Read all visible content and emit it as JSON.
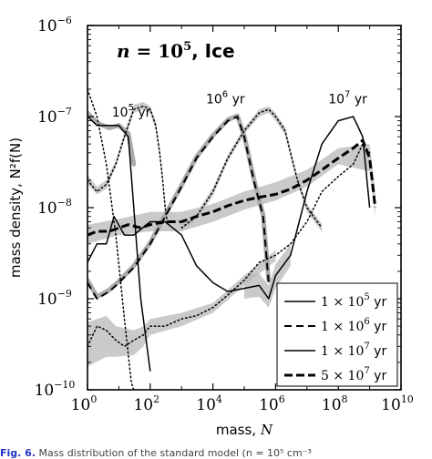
{
  "chart_data": {
    "type": "line",
    "title": "n = 10^5, Ice",
    "title_n": "n",
    "title_eq": " = 10",
    "title_exp": "5",
    "title_tail": ", Ice",
    "xlabel": "mass,",
    "xlabel_var": "N",
    "ylabel": "mass density, N²f(N)",
    "xscale": "log",
    "yscale": "log",
    "xlim": [
      1,
      10000000000.0
    ],
    "ylim": [
      1e-10,
      1e-06
    ],
    "x_ticks": [
      {
        "base": "10",
        "exp": "0",
        "value": 1
      },
      {
        "base": "10",
        "exp": "2",
        "value": 100
      },
      {
        "base": "10",
        "exp": "4",
        "value": 10000
      },
      {
        "base": "10",
        "exp": "6",
        "value": 1000000
      },
      {
        "base": "10",
        "exp": "8",
        "value": 100000000
      },
      {
        "base": "10",
        "exp": "10",
        "value": 10000000000
      }
    ],
    "y_ticks": [
      {
        "base": "10",
        "exp": "−10",
        "value": 1e-10
      },
      {
        "base": "10",
        "exp": "−9",
        "value": 1e-09
      },
      {
        "base": "10",
        "exp": "−8",
        "value": 1e-08
      },
      {
        "base": "10",
        "exp": "−7",
        "value": 1e-07
      },
      {
        "base": "10",
        "exp": "−6",
        "value": 1e-06
      }
    ],
    "annotations": [
      {
        "base": "10",
        "exp": "5",
        "unit": " yr",
        "x": 25,
        "y": 1e-07
      },
      {
        "base": "10",
        "exp": "6",
        "unit": " yr",
        "x": 25000,
        "y": 1.4e-07
      },
      {
        "base": "10",
        "exp": "7",
        "unit": " yr",
        "x": 200000000,
        "y": 1.4e-07
      }
    ],
    "legend_position": "lower right",
    "series": [
      {
        "name": "1 × 10^5 yr",
        "legend_text": "1 × 10",
        "legend_exp": "5",
        "legend_unit": " yr",
        "style": "solid",
        "width": 1.5,
        "x": [
          1,
          2,
          5,
          10,
          20,
          30,
          50,
          100
        ],
        "y": [
          1e-07,
          8e-08,
          8e-08,
          8e-08,
          6e-08,
          1e-08,
          1e-09,
          1.6e-10
        ],
        "shadow_x": [
          1,
          2,
          5,
          10,
          20,
          30
        ],
        "shadow_y": [
          1.1e-07,
          8.5e-08,
          7.5e-08,
          8e-08,
          6.5e-08,
          3e-08
        ]
      },
      {
        "name": "1 × 10^6 yr",
        "legend_text": "1 × 10",
        "legend_exp": "6",
        "legend_unit": " yr",
        "style": "dashed",
        "width": 2,
        "x": [
          1,
          2,
          5,
          10,
          30,
          100,
          300,
          1000,
          3000,
          10000,
          30000,
          60000,
          100000,
          200000,
          400000,
          600000
        ],
        "y": [
          1.5e-09,
          1e-09,
          1.2e-09,
          1.5e-09,
          2.2e-09,
          4e-09,
          8e-09,
          1.7e-08,
          3.5e-08,
          6e-08,
          9e-08,
          1e-07,
          6e-08,
          2e-08,
          8e-09,
          1.5e-09
        ],
        "shadow_x": [
          1,
          2,
          5,
          10,
          30,
          100,
          300,
          1000,
          3000,
          10000,
          30000,
          60000,
          100000,
          200000,
          400000,
          600000
        ],
        "shadow_y": [
          1.6e-09,
          1.05e-09,
          1.25e-09,
          1.55e-09,
          2.3e-09,
          4.1e-09,
          8.3e-09,
          1.75e-08,
          3.6e-08,
          6.2e-08,
          9.2e-08,
          1.02e-07,
          6.2e-08,
          2.1e-08,
          8.3e-09,
          1.6e-09
        ]
      },
      {
        "name": "1 × 10^7 yr",
        "legend_text": "1 × 10",
        "legend_exp": "7",
        "legend_unit": " yr",
        "style": "solid",
        "width": 1.5,
        "x": [
          1,
          2,
          4,
          7,
          15,
          30,
          100,
          300,
          1000,
          3000,
          10000,
          30000,
          100000,
          300000,
          600000,
          1000000,
          3000000,
          10000000,
          30000000,
          100000000,
          300000000,
          600000000,
          1000000000
        ],
        "y": [
          2.5e-09,
          4e-09,
          4e-09,
          8e-09,
          5e-09,
          5e-09,
          7e-09,
          7e-09,
          5e-09,
          2.3e-09,
          1.5e-09,
          1.2e-09,
          1.3e-09,
          1.4e-09,
          1e-09,
          1.8e-09,
          3e-09,
          1.5e-08,
          5e-08,
          9e-08,
          1e-07,
          6e-08,
          1e-08
        ],
        "band_x": [
          100000,
          300000,
          600000,
          1000000,
          3000000
        ],
        "band_lo": [
          1e-09,
          1.05e-09,
          8e-10,
          1.3e-09,
          2.3e-09
        ],
        "band_hi": [
          1.8e-09,
          1.9e-09,
          1.4e-09,
          2.4e-09,
          4e-09
        ]
      },
      {
        "name": "5 × 10^7 yr",
        "legend_text": "5 × 10",
        "legend_exp": "7",
        "legend_unit": " yr",
        "style": "thickdash",
        "width": 3,
        "x": [
          1,
          2,
          5,
          10,
          20,
          50,
          100,
          300,
          1000,
          3000,
          10000,
          30000,
          100000,
          300000,
          1000000,
          3000000,
          10000000,
          30000000,
          100000000,
          300000000,
          600000000,
          1000000000,
          1500000000
        ],
        "y": [
          5e-09,
          5.5e-09,
          5.5e-09,
          6e-09,
          6.5e-09,
          6e-09,
          6.5e-09,
          7e-09,
          7e-09,
          8e-09,
          9e-09,
          1.05e-08,
          1.2e-08,
          1.3e-08,
          1.4e-08,
          1.6e-08,
          2e-08,
          2.6e-08,
          3.5e-08,
          4.5e-08,
          5.5e-08,
          3.5e-08,
          1e-08
        ],
        "band_x": [
          1,
          10,
          100,
          1000,
          10000,
          100000,
          1000000,
          10000000,
          100000000,
          1000000000,
          1500000000
        ],
        "band_lo": [
          4e-09,
          5e-09,
          5.5e-09,
          5.5e-09,
          7e-09,
          9.5e-09,
          1.2e-08,
          1.7e-08,
          3e-08,
          2.5e-08,
          8e-09
        ],
        "band_hi": [
          6.5e-09,
          7.5e-09,
          9e-09,
          9e-09,
          1.1e-08,
          1.5e-08,
          1.9e-08,
          2.6e-08,
          4.5e-08,
          5e-08,
          1.5e-08
        ]
      },
      {
        "name": "dotted 10^5 yr",
        "style": "dotted",
        "width": 1.5,
        "x": [
          1,
          2,
          4,
          8,
          15,
          25,
          30
        ],
        "y": [
          2e-07,
          1e-07,
          3e-08,
          5e-09,
          6e-10,
          1.2e-10,
          1e-10
        ]
      },
      {
        "name": "dotted early",
        "style": "dotted",
        "width": 1.5,
        "x": [
          1,
          2,
          4,
          8,
          15,
          30,
          60,
          100,
          150,
          200,
          250,
          300,
          350
        ],
        "y": [
          2e-08,
          1.5e-08,
          1.8e-08,
          3e-08,
          6e-08,
          1.2e-07,
          1.3e-07,
          1.2e-07,
          8e-08,
          4e-08,
          2e-08,
          1e-08,
          7e-09
        ],
        "band_x": [
          1,
          2,
          4,
          8,
          15,
          30,
          60,
          100,
          150,
          200,
          250,
          300,
          350
        ],
        "band_lo": [
          1.8e-08,
          1.4e-08,
          1.6e-08,
          2.8e-08,
          5.5e-08,
          1.1e-07,
          1.2e-07,
          1.1e-07,
          7e-08,
          3.5e-08,
          1.8e-08,
          9e-09,
          6e-09
        ],
        "band_hi": [
          2.3e-08,
          1.7e-08,
          2e-08,
          3.3e-08,
          6.7e-08,
          1.35e-07,
          1.45e-07,
          1.3e-07,
          9e-08,
          4.5e-08,
          2.2e-08,
          1.15e-08,
          8e-09
        ]
      },
      {
        "name": "dotted middle",
        "style": "dotted",
        "width": 1.5,
        "x": [
          1000,
          3000,
          10000,
          30000,
          100000,
          300000,
          600000,
          1000000,
          2000000,
          3000000,
          5000000,
          10000000,
          30000000
        ],
        "y": [
          6e-09,
          8e-09,
          1.5e-08,
          3.5e-08,
          7e-08,
          1.1e-07,
          1.2e-07,
          1e-07,
          7e-08,
          4e-08,
          2e-08,
          1e-08,
          6e-09
        ],
        "band_x": [
          1000,
          3000,
          10000,
          30000,
          100000,
          300000,
          600000,
          1000000,
          2000000,
          3000000,
          5000000,
          10000000,
          30000000
        ],
        "band_lo": [
          5.5e-09,
          7.3e-09,
          1.35e-08,
          3.2e-08,
          6.4e-08,
          1e-07,
          1.1e-07,
          9e-08,
          6.3e-08,
          3.6e-08,
          1.8e-08,
          9e-09,
          5.4e-09
        ],
        "band_hi": [
          6.6e-09,
          8.8e-09,
          1.65e-08,
          3.8e-08,
          7.6e-08,
          1.2e-07,
          1.3e-07,
          1.1e-07,
          7.7e-08,
          4.4e-08,
          2.2e-08,
          1.1e-08,
          6.6e-09
        ]
      },
      {
        "name": "dotted late",
        "style": "dotted",
        "width": 1.5,
        "x": [
          1,
          2,
          4,
          8,
          15,
          30,
          60,
          100,
          300,
          1000,
          3000,
          10000,
          30000,
          100000,
          300000,
          1000000,
          3000000,
          10000000,
          30000000,
          100000000,
          300000000,
          600000000,
          1000000000
        ],
        "y": [
          3e-10,
          5e-10,
          4.5e-10,
          3.5e-10,
          3e-10,
          3.5e-10,
          4e-10,
          5e-10,
          5e-10,
          6e-10,
          6.5e-10,
          8e-10,
          1.1e-09,
          1.6e-09,
          2.5e-09,
          3e-09,
          4e-09,
          7e-09,
          1.5e-08,
          2.2e-08,
          3e-08,
          5e-08,
          4e-08
        ],
        "band_x": [
          1,
          4,
          8,
          30,
          60,
          100,
          1000,
          10000,
          100000,
          1000000
        ],
        "band_lo": [
          1.8e-10,
          2.3e-10,
          2.3e-10,
          2.4e-10,
          3e-10,
          4e-10,
          5e-10,
          7e-10,
          1.4e-09,
          2.6e-09
        ],
        "band_hi": [
          5.5e-10,
          6.5e-10,
          5e-10,
          4.5e-10,
          5e-10,
          6e-10,
          7e-10,
          9e-10,
          1.8e-09,
          3.4e-09
        ]
      }
    ]
  },
  "caption": {
    "fig_label": "Fig. 6.",
    "text": "Mass distribution of the standard model (n = 10⁵ cm⁻³"
  }
}
